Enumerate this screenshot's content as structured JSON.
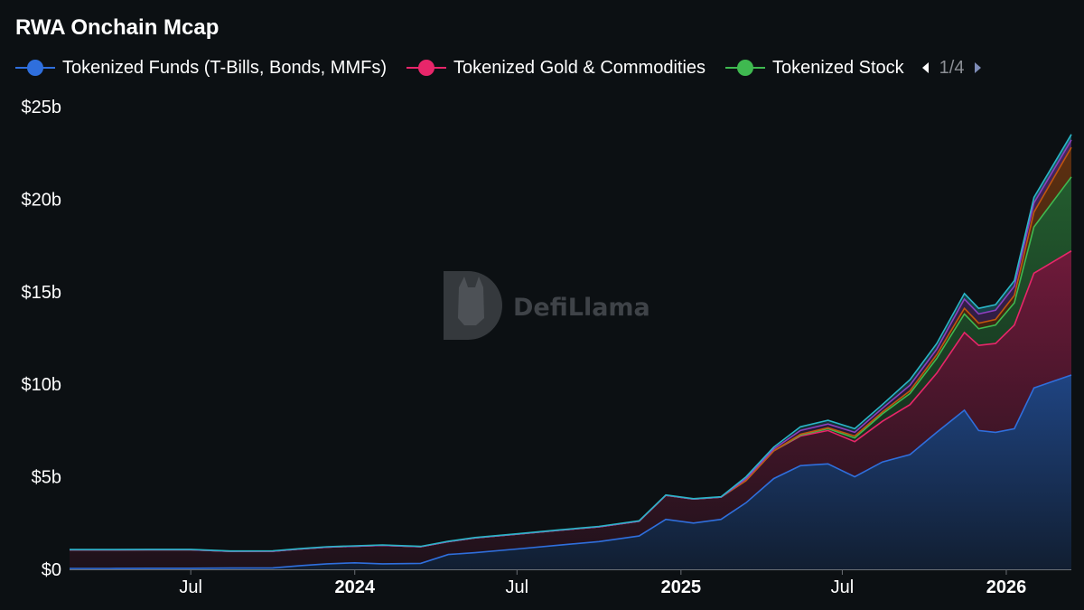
{
  "title": "RWA Onchain Mcap",
  "watermark": "DefiLlama",
  "legend": {
    "items": [
      {
        "label": "Tokenized Funds (T-Bills, Bonds, MMFs)",
        "color": "#2f6fdd"
      },
      {
        "label": "Tokenized Gold & Commodities",
        "color": "#e8266a"
      },
      {
        "label": "Tokenized Stock",
        "color": "#3fb950"
      }
    ],
    "page": "1/4"
  },
  "chart_data": {
    "type": "area",
    "stacked": true,
    "y_tick_labels": [
      "$0",
      "$5b",
      "$10b",
      "$15b",
      "$20b",
      "$25b"
    ],
    "y_ticks": [
      0,
      5,
      10,
      15,
      20,
      25
    ],
    "ylim": [
      0,
      25
    ],
    "y_unit": "billion USD",
    "x_tick_labels": [
      {
        "date": "2023-07-01",
        "label": "Jul",
        "bold": false
      },
      {
        "date": "2024-01-01",
        "label": "2024",
        "bold": true
      },
      {
        "date": "2024-07-01",
        "label": "Jul",
        "bold": false
      },
      {
        "date": "2025-01-01",
        "label": "2025",
        "bold": true
      },
      {
        "date": "2025-07-01",
        "label": "Jul",
        "bold": false
      },
      {
        "date": "2026-01-01",
        "label": "2026",
        "bold": true
      }
    ],
    "xlim": [
      "2023-02-15",
      "2026-03-15"
    ],
    "grid": false,
    "series": [
      {
        "name": "Tokenized Funds (T-Bills, Bonds, MMFs)",
        "color": "#2f6fdd",
        "values": [
          0.05,
          0.05,
          0.06,
          0.06,
          0.07,
          0.08,
          0.2,
          0.3,
          0.35,
          0.3,
          0.32,
          0.8,
          0.9,
          1.1,
          1.3,
          1.5,
          1.8,
          2.7,
          2.5,
          2.7,
          3.6,
          4.9,
          5.6,
          5.7,
          5.0,
          5.8,
          6.2,
          7.4,
          8.6,
          7.5,
          7.4,
          7.6,
          9.8,
          10.5
        ]
      },
      {
        "name": "Tokenized Gold & Commodities",
        "color": "#e8266a",
        "values": [
          1.0,
          1.0,
          1.0,
          1.0,
          0.9,
          0.9,
          0.9,
          0.9,
          0.9,
          1.0,
          0.9,
          0.7,
          0.8,
          0.8,
          0.8,
          0.8,
          0.8,
          1.3,
          1.3,
          1.2,
          1.2,
          1.5,
          1.6,
          1.8,
          1.9,
          2.2,
          2.7,
          3.2,
          4.2,
          4.6,
          4.8,
          5.6,
          6.2,
          6.7
        ]
      },
      {
        "name": "Tokenized Stock",
        "color": "#3fb950",
        "values": [
          0,
          0,
          0,
          0,
          0,
          0,
          0,
          0,
          0,
          0,
          0,
          0,
          0,
          0,
          0,
          0,
          0,
          0,
          0,
          0,
          0,
          0,
          0.05,
          0.1,
          0.2,
          0.4,
          0.6,
          0.8,
          1.0,
          0.9,
          1.0,
          1.2,
          2.5,
          4.0
        ]
      },
      {
        "name": "",
        "color": "#c0560e",
        "values": [
          0,
          0,
          0,
          0,
          0,
          0,
          0,
          0,
          0,
          0,
          0,
          0,
          0,
          0,
          0,
          0,
          0,
          0,
          0,
          0,
          0,
          0,
          0.05,
          0.05,
          0.1,
          0.1,
          0.15,
          0.2,
          0.3,
          0.3,
          0.3,
          0.4,
          0.8,
          1.6
        ]
      },
      {
        "name": "",
        "color": "#8e3fbf",
        "values": [
          0,
          0,
          0,
          0,
          0,
          0,
          0,
          0,
          0,
          0,
          0,
          0,
          0,
          0,
          0,
          0,
          0,
          0,
          0,
          0,
          0.1,
          0.1,
          0.2,
          0.2,
          0.2,
          0.2,
          0.3,
          0.3,
          0.5,
          0.5,
          0.5,
          0.5,
          0.5,
          0.4
        ]
      },
      {
        "name": "",
        "color": "#2ab6c7",
        "values": [
          0.02,
          0.02,
          0.02,
          0.02,
          0.02,
          0.02,
          0.02,
          0.02,
          0.02,
          0.02,
          0.02,
          0.02,
          0.02,
          0.02,
          0.02,
          0.02,
          0.02,
          0.02,
          0.02,
          0.02,
          0.1,
          0.1,
          0.2,
          0.2,
          0.2,
          0.2,
          0.3,
          0.3,
          0.3,
          0.3,
          0.3,
          0.3,
          0.3,
          0.3
        ]
      }
    ],
    "x": [
      "2023-02-15",
      "2023-04-01",
      "2023-05-15",
      "2023-07-01",
      "2023-08-15",
      "2023-10-01",
      "2023-11-01",
      "2023-12-01",
      "2024-01-01",
      "2024-02-01",
      "2024-03-15",
      "2024-04-15",
      "2024-05-15",
      "2024-07-01",
      "2024-08-15",
      "2024-10-01",
      "2024-11-15",
      "2024-12-15",
      "2025-01-15",
      "2025-02-15",
      "2025-03-15",
      "2025-04-15",
      "2025-05-15",
      "2025-06-15",
      "2025-07-15",
      "2025-08-15",
      "2025-09-15",
      "2025-10-15",
      "2025-11-15",
      "2025-12-01",
      "2025-12-20",
      "2026-01-10",
      "2026-02-01",
      "2026-03-15"
    ]
  }
}
